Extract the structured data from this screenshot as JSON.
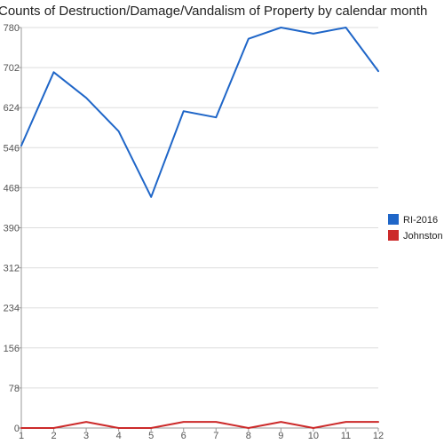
{
  "chart_data": {
    "type": "line",
    "title": "Counts of Destruction/Damage/Vandalism of Property by calendar month",
    "xlabel": "",
    "ylabel": "",
    "x": [
      1,
      2,
      3,
      4,
      5,
      6,
      7,
      8,
      9,
      10,
      11,
      12
    ],
    "x_tick_labels": [
      "1",
      "2",
      "3",
      "4",
      "5",
      "6",
      "7",
      "8",
      "9",
      "10",
      "11",
      "12"
    ],
    "ylim": [
      0,
      780
    ],
    "y_ticks": [
      0,
      78,
      156,
      234,
      312,
      390,
      468,
      546,
      624,
      702,
      780
    ],
    "y_tick_labels": [
      "0",
      "78",
      "156",
      "234",
      "312",
      "390",
      "468",
      "546",
      "624",
      "702",
      "780"
    ],
    "grid": true,
    "legend_position": "right",
    "series": [
      {
        "name": "RI-2016",
        "color": "#1f66c8",
        "values": [
          550,
          693,
          643,
          578,
          450,
          617,
          605,
          758,
          780,
          768,
          780,
          695
        ]
      },
      {
        "name": "Johnston",
        "color": "#cc2a2a",
        "values": [
          0,
          0,
          12,
          0,
          0,
          12,
          12,
          0,
          12,
          0,
          12,
          12
        ]
      }
    ]
  }
}
